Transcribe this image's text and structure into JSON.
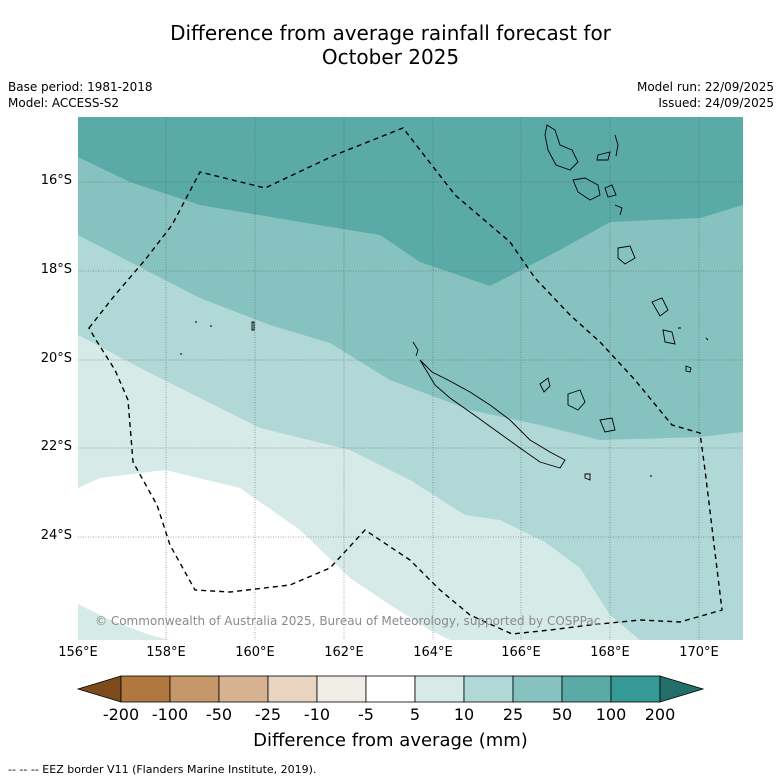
{
  "title_line1": "Difference from average rainfall forecast for",
  "title_line2": "October 2025",
  "base_period": "Base period: 1981-2018",
  "model": "Model: ACCESS-S2",
  "model_run": "Model run: 22/09/2025",
  "issued": "Issued: 24/09/2025",
  "lon_labels": [
    "156°E",
    "158°E",
    "160°E",
    "162°E",
    "164°E",
    "166°E",
    "168°E",
    "170°E"
  ],
  "lat_labels": [
    "16°S",
    "18°S",
    "20°S",
    "22°S",
    "24°S"
  ],
  "credit": "© Commonwealth of Australia 2025, Bureau of Meteorology, supported by COSPPac",
  "colorbar": {
    "title": "Difference from average (mm)",
    "tick_labels": [
      "-200",
      "-100",
      "-50",
      "-25",
      "-10",
      "-5",
      "5",
      "10",
      "25",
      "50",
      "100",
      "200"
    ],
    "colors": [
      "#7d4a1c",
      "#b07840",
      "#c49668",
      "#d6b292",
      "#e8d4bf",
      "#f0ece6",
      "#ffffff",
      "#d6ebe8",
      "#b0d8d6",
      "#86c2c0",
      "#5aaaa8",
      "#359a96",
      "#236e6a"
    ]
  },
  "footnote": "--  --  -- EEZ border V11 (Flanders Marine Institute, 2019)."
}
